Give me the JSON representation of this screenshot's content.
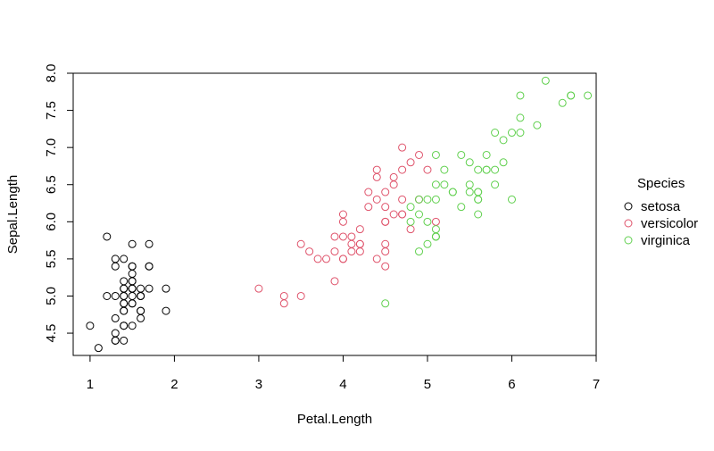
{
  "chart_data": {
    "type": "scatter",
    "title": "",
    "xlabel": "Petal.Length",
    "ylabel": "Sepal.Length",
    "xlim": [
      0.8,
      7.0
    ],
    "ylim": [
      4.2,
      8.0
    ],
    "x_ticks": [
      1,
      2,
      3,
      4,
      5,
      6,
      7
    ],
    "y_ticks": [
      4.5,
      5.0,
      5.5,
      6.0,
      6.5,
      7.0,
      7.5,
      8.0
    ],
    "y_tick_labels": [
      "4.5",
      "5.0",
      "5.5",
      "6.0",
      "6.5",
      "7.0",
      "7.5",
      "8.0"
    ],
    "grid": false,
    "legend": {
      "title": "Species",
      "position": "right"
    },
    "series": [
      {
        "name": "setosa",
        "color": "#000000",
        "points": [
          [
            1.4,
            5.1
          ],
          [
            1.4,
            4.9
          ],
          [
            1.3,
            4.7
          ],
          [
            1.5,
            4.6
          ],
          [
            1.4,
            5.0
          ],
          [
            1.7,
            5.4
          ],
          [
            1.4,
            4.6
          ],
          [
            1.5,
            5.0
          ],
          [
            1.4,
            4.4
          ],
          [
            1.5,
            4.9
          ],
          [
            1.5,
            5.4
          ],
          [
            1.6,
            4.8
          ],
          [
            1.4,
            4.8
          ],
          [
            1.1,
            4.3
          ],
          [
            1.2,
            5.8
          ],
          [
            1.5,
            5.7
          ],
          [
            1.3,
            5.4
          ],
          [
            1.4,
            5.1
          ],
          [
            1.7,
            5.7
          ],
          [
            1.5,
            5.1
          ],
          [
            1.7,
            5.4
          ],
          [
            1.5,
            5.1
          ],
          [
            1.0,
            4.6
          ],
          [
            1.7,
            5.1
          ],
          [
            1.9,
            4.8
          ],
          [
            1.6,
            5.0
          ],
          [
            1.6,
            5.0
          ],
          [
            1.5,
            5.2
          ],
          [
            1.4,
            5.2
          ],
          [
            1.6,
            4.7
          ],
          [
            1.6,
            4.8
          ],
          [
            1.5,
            5.4
          ],
          [
            1.5,
            5.2
          ],
          [
            1.4,
            5.5
          ],
          [
            1.5,
            4.9
          ],
          [
            1.2,
            5.0
          ],
          [
            1.3,
            5.5
          ],
          [
            1.4,
            4.9
          ],
          [
            1.3,
            4.4
          ],
          [
            1.5,
            5.1
          ],
          [
            1.3,
            5.0
          ],
          [
            1.3,
            4.5
          ],
          [
            1.3,
            4.4
          ],
          [
            1.6,
            5.0
          ],
          [
            1.9,
            5.1
          ],
          [
            1.4,
            4.8
          ],
          [
            1.6,
            5.1
          ],
          [
            1.4,
            4.6
          ],
          [
            1.5,
            5.3
          ],
          [
            1.4,
            5.0
          ]
        ]
      },
      {
        "name": "versicolor",
        "color": "#DF536B",
        "points": [
          [
            4.7,
            7.0
          ],
          [
            4.5,
            6.4
          ],
          [
            4.9,
            6.9
          ],
          [
            4.0,
            5.5
          ],
          [
            4.6,
            6.5
          ],
          [
            4.5,
            5.7
          ],
          [
            4.7,
            6.3
          ],
          [
            3.3,
            4.9
          ],
          [
            4.6,
            6.6
          ],
          [
            3.9,
            5.2
          ],
          [
            3.5,
            5.0
          ],
          [
            4.2,
            5.9
          ],
          [
            4.0,
            6.0
          ],
          [
            4.7,
            6.1
          ],
          [
            3.6,
            5.6
          ],
          [
            4.4,
            6.7
          ],
          [
            4.5,
            5.6
          ],
          [
            4.1,
            5.8
          ],
          [
            4.5,
            6.2
          ],
          [
            3.9,
            5.6
          ],
          [
            4.8,
            5.9
          ],
          [
            4.0,
            6.1
          ],
          [
            4.9,
            6.3
          ],
          [
            4.7,
            6.1
          ],
          [
            4.3,
            6.4
          ],
          [
            4.4,
            6.6
          ],
          [
            4.8,
            6.8
          ],
          [
            5.0,
            6.7
          ],
          [
            4.5,
            6.0
          ],
          [
            3.5,
            5.7
          ],
          [
            3.8,
            5.5
          ],
          [
            3.7,
            5.5
          ],
          [
            3.9,
            5.8
          ],
          [
            5.1,
            6.0
          ],
          [
            4.5,
            5.4
          ],
          [
            4.5,
            6.0
          ],
          [
            4.7,
            6.7
          ],
          [
            4.4,
            6.3
          ],
          [
            4.1,
            5.6
          ],
          [
            4.0,
            5.5
          ],
          [
            4.4,
            5.5
          ],
          [
            4.6,
            6.1
          ],
          [
            4.0,
            5.8
          ],
          [
            3.3,
            5.0
          ],
          [
            4.2,
            5.6
          ],
          [
            4.2,
            5.7
          ],
          [
            4.2,
            5.7
          ],
          [
            4.3,
            6.2
          ],
          [
            3.0,
            5.1
          ],
          [
            4.1,
            5.7
          ]
        ]
      },
      {
        "name": "virginica",
        "color": "#61D04F",
        "points": [
          [
            6.0,
            6.3
          ],
          [
            5.1,
            5.8
          ],
          [
            5.9,
            7.1
          ],
          [
            5.6,
            6.3
          ],
          [
            5.8,
            6.5
          ],
          [
            6.6,
            7.6
          ],
          [
            4.5,
            4.9
          ],
          [
            6.3,
            7.3
          ],
          [
            5.8,
            6.7
          ],
          [
            6.1,
            7.2
          ],
          [
            5.1,
            6.5
          ],
          [
            5.3,
            6.4
          ],
          [
            5.5,
            6.8
          ],
          [
            5.0,
            5.7
          ],
          [
            5.1,
            5.8
          ],
          [
            5.3,
            6.4
          ],
          [
            5.5,
            6.5
          ],
          [
            6.7,
            7.7
          ],
          [
            6.9,
            7.7
          ],
          [
            5.0,
            6.0
          ],
          [
            5.7,
            6.9
          ],
          [
            4.9,
            5.6
          ],
          [
            6.7,
            7.7
          ],
          [
            4.9,
            6.3
          ],
          [
            5.7,
            6.7
          ],
          [
            6.0,
            7.2
          ],
          [
            4.8,
            6.2
          ],
          [
            4.9,
            6.1
          ],
          [
            5.6,
            6.4
          ],
          [
            5.8,
            7.2
          ],
          [
            6.1,
            7.4
          ],
          [
            6.4,
            7.9
          ],
          [
            5.6,
            6.4
          ],
          [
            5.1,
            6.3
          ],
          [
            5.6,
            6.1
          ],
          [
            6.1,
            7.7
          ],
          [
            5.6,
            6.3
          ],
          [
            5.5,
            6.4
          ],
          [
            4.8,
            6.0
          ],
          [
            5.4,
            6.9
          ],
          [
            5.6,
            6.7
          ],
          [
            5.1,
            6.9
          ],
          [
            5.1,
            5.8
          ],
          [
            5.9,
            6.8
          ],
          [
            5.7,
            6.7
          ],
          [
            5.2,
            6.7
          ],
          [
            5.0,
            6.3
          ],
          [
            5.2,
            6.5
          ],
          [
            5.4,
            6.2
          ],
          [
            5.1,
            5.9
          ]
        ]
      }
    ]
  }
}
